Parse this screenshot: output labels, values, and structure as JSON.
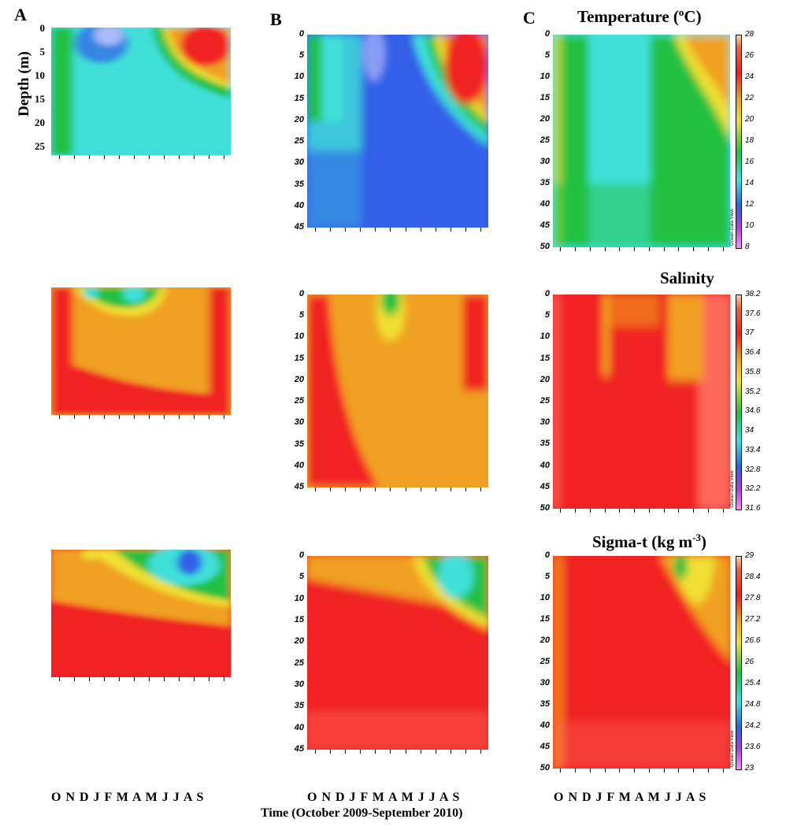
{
  "headers": {
    "a": "A",
    "b": "B",
    "c": "C"
  },
  "titles": {
    "temperature": "Temperature (",
    "temperature_sup": "o",
    "temperature_end": "C)",
    "salinity": "Salinity",
    "sigma": "Sigma-t (kg m",
    "sigma_sup": "-3",
    "sigma_end": ")"
  },
  "ylabel": "Depth (m)",
  "months": "O N D J F M A M J J A S",
  "xtitle": "Time (October 2009-September 2010)",
  "colorbar_brand": "Ocean Data View",
  "colorbars": {
    "temperature": [
      "28",
      "26",
      "24",
      "22",
      "20",
      "18",
      "16",
      "14",
      "12",
      "10",
      "8"
    ],
    "salinity": [
      "38.2",
      "37.6",
      "37",
      "36.4",
      "35.8",
      "35.2",
      "34.6",
      "34",
      "33.4",
      "32.8",
      "32.2",
      "31.6"
    ],
    "sigma": [
      "29",
      "28.4",
      "27.8",
      "27.2",
      "26.6",
      "26",
      "25.4",
      "24.8",
      "24.2",
      "23.6",
      "23"
    ]
  },
  "colors": {
    "purple": "#c8c8ff",
    "blue": "#3060e8",
    "cyan": "#40e0d8",
    "green": "#20c040",
    "yellow": "#f0e030",
    "orange": "#f0a020",
    "red": "#f02020",
    "pink": "#ff7060"
  },
  "chart_data": [
    {
      "type": "heatmap",
      "column": "A",
      "variable": "Temperature",
      "x": [
        "O",
        "N",
        "D",
        "J",
        "F",
        "M",
        "A",
        "M",
        "J",
        "J",
        "A",
        "S"
      ],
      "y_ticks": [
        0,
        5,
        10,
        15,
        20,
        25
      ],
      "ylim": [
        0,
        27
      ]
    },
    {
      "type": "heatmap",
      "column": "B",
      "variable": "Temperature",
      "x": [
        "O",
        "N",
        "D",
        "J",
        "F",
        "M",
        "A",
        "M",
        "J",
        "J",
        "A",
        "S"
      ],
      "y_ticks": [
        0,
        5,
        10,
        15,
        20,
        25,
        30,
        35,
        40,
        45
      ],
      "ylim": [
        0,
        45
      ]
    },
    {
      "type": "heatmap",
      "column": "C",
      "variable": "Temperature",
      "x": [
        "O",
        "N",
        "D",
        "J",
        "F",
        "M",
        "A",
        "M",
        "J",
        "J",
        "A",
        "S"
      ],
      "y_ticks": [
        0,
        5,
        10,
        15,
        20,
        25,
        30,
        35,
        40,
        45,
        50
      ],
      "ylim": [
        0,
        50
      ],
      "colorbar": [
        8,
        28
      ]
    },
    {
      "type": "heatmap",
      "column": "A",
      "variable": "Salinity",
      "x": [
        "O",
        "N",
        "D",
        "J",
        "F",
        "M",
        "A",
        "M",
        "J",
        "J",
        "A",
        "S"
      ]
    },
    {
      "type": "heatmap",
      "column": "B",
      "variable": "Salinity",
      "x": [
        "O",
        "N",
        "D",
        "J",
        "F",
        "M",
        "A",
        "M",
        "J",
        "J",
        "A",
        "S"
      ],
      "y_ticks": [
        0,
        5,
        10,
        15,
        20,
        25,
        30,
        35,
        40,
        45
      ],
      "ylim": [
        0,
        45
      ]
    },
    {
      "type": "heatmap",
      "column": "C",
      "variable": "Salinity",
      "x": [
        "O",
        "N",
        "D",
        "J",
        "F",
        "M",
        "A",
        "M",
        "J",
        "J",
        "A",
        "S"
      ],
      "y_ticks": [
        0,
        5,
        10,
        15,
        20,
        25,
        30,
        35,
        40,
        45,
        50
      ],
      "ylim": [
        0,
        50
      ],
      "colorbar": [
        31.6,
        38.2
      ]
    },
    {
      "type": "heatmap",
      "column": "A",
      "variable": "Sigma-t",
      "x": [
        "O",
        "N",
        "D",
        "J",
        "F",
        "M",
        "A",
        "M",
        "J",
        "J",
        "A",
        "S"
      ]
    },
    {
      "type": "heatmap",
      "column": "B",
      "variable": "Sigma-t",
      "x": [
        "O",
        "N",
        "D",
        "J",
        "F",
        "M",
        "A",
        "M",
        "J",
        "J",
        "A",
        "S"
      ],
      "y_ticks": [
        0,
        5,
        10,
        15,
        20,
        25,
        30,
        35,
        40,
        45
      ],
      "ylim": [
        0,
        45
      ]
    },
    {
      "type": "heatmap",
      "column": "C",
      "variable": "Sigma-t",
      "x": [
        "O",
        "N",
        "D",
        "J",
        "F",
        "M",
        "A",
        "M",
        "J",
        "J",
        "A",
        "S"
      ],
      "y_ticks": [
        0,
        5,
        10,
        15,
        20,
        25,
        30,
        35,
        40,
        45,
        50
      ],
      "ylim": [
        0,
        50
      ],
      "colorbar": [
        23,
        29
      ]
    }
  ]
}
